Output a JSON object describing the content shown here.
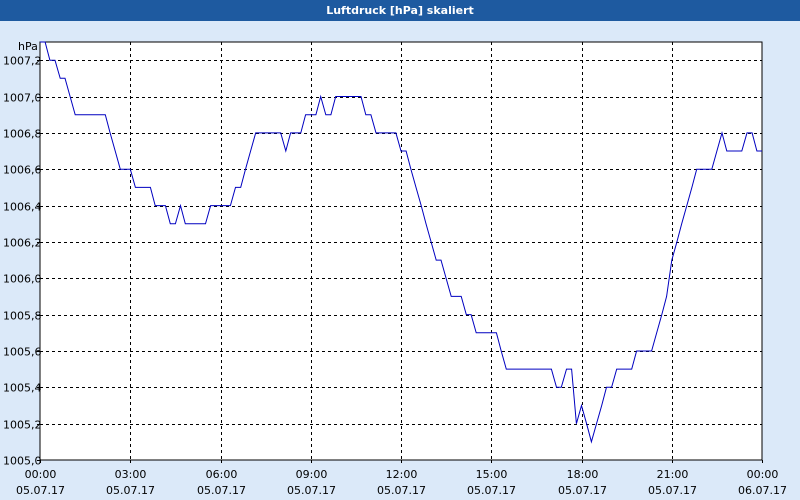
{
  "window": {
    "title": "Luftdruck [hPa] skaliert"
  },
  "colors": {
    "title_bg": "#1e5aa0",
    "background": "#dbe9f9",
    "plot_bg": "#ffffff",
    "grid": "#000000",
    "line": "#0000c0"
  },
  "chart_data": {
    "type": "line",
    "title": "Luftdruck [hPa] skaliert",
    "ylabel": "hPa",
    "xlabel": "",
    "grid": true,
    "x_range_hours": [
      0,
      24
    ],
    "ylim": [
      1005.0,
      1007.3
    ],
    "yticks": [
      "1005,0",
      "1005,2",
      "1005,4",
      "1005,6",
      "1005,8",
      "1006,0",
      "1006,2",
      "1006,4",
      "1006,6",
      "1006,8",
      "1007,0",
      "1007,2"
    ],
    "ytick_values": [
      1005.0,
      1005.2,
      1005.4,
      1005.6,
      1005.8,
      1006.0,
      1006.2,
      1006.4,
      1006.6,
      1006.8,
      1007.0,
      1007.2
    ],
    "xticks": [
      {
        "time": "00:00",
        "date": "05.07.17"
      },
      {
        "time": "03:00",
        "date": "05.07.17"
      },
      {
        "time": "06:00",
        "date": "05.07.17"
      },
      {
        "time": "09:00",
        "date": "05.07.17"
      },
      {
        "time": "12:00",
        "date": "05.07.17"
      },
      {
        "time": "15:00",
        "date": "05.07.17"
      },
      {
        "time": "18:00",
        "date": "05.07.17"
      },
      {
        "time": "21:00",
        "date": "05.07.17"
      },
      {
        "time": "00:00",
        "date": "06.07.17"
      }
    ],
    "xtick_hours": [
      0,
      3,
      6,
      9,
      12,
      15,
      18,
      21,
      24
    ],
    "series": [
      {
        "x": [
          0.0,
          0.17,
          0.33,
          0.5,
          0.67,
          0.83,
          1.0,
          1.17,
          1.33,
          1.5,
          1.67,
          1.83,
          2.0,
          2.17,
          2.33,
          2.5,
          2.67,
          2.83,
          3.0,
          3.17,
          3.33,
          3.5,
          3.67,
          3.83,
          4.0,
          4.17,
          4.33,
          4.5,
          4.67,
          4.83,
          5.0,
          5.17,
          5.33,
          5.5,
          5.67,
          5.83,
          6.0,
          6.17,
          6.33,
          6.5,
          6.67,
          6.83,
          7.0,
          7.17,
          7.33,
          7.5,
          7.67,
          7.83,
          8.0,
          8.17,
          8.33,
          8.5,
          8.67,
          8.83,
          9.0,
          9.17,
          9.33,
          9.5,
          9.67,
          9.83,
          10.0,
          10.17,
          10.33,
          10.5,
          10.67,
          10.83,
          11.0,
          11.17,
          11.33,
          11.5,
          11.67,
          11.83,
          12.0,
          12.17,
          12.33,
          12.5,
          12.67,
          12.83,
          13.0,
          13.17,
          13.33,
          13.5,
          13.67,
          13.83,
          14.0,
          14.17,
          14.33,
          14.5,
          14.67,
          14.83,
          15.0,
          15.17,
          15.33,
          15.5,
          15.67,
          15.83,
          16.0,
          16.17,
          16.33,
          16.5,
          16.67,
          16.83,
          17.0,
          17.17,
          17.33,
          17.5,
          17.67,
          17.83,
          18.0,
          18.17,
          18.33,
          18.5,
          18.67,
          18.83,
          19.0,
          19.17,
          19.33,
          19.5,
          19.67,
          19.83,
          20.0,
          20.17,
          20.33,
          20.5,
          20.67,
          20.83,
          21.0,
          21.17,
          21.33,
          21.5,
          21.67,
          21.83,
          22.0,
          22.17,
          22.33,
          22.5,
          22.67,
          22.83,
          23.0,
          23.17,
          23.33,
          23.5,
          23.67,
          23.83,
          24.0
        ],
        "y": [
          1007.3,
          1007.3,
          1007.2,
          1007.2,
          1007.1,
          1007.1,
          1007.0,
          1006.9,
          1006.9,
          1006.9,
          1006.9,
          1006.9,
          1006.9,
          1006.9,
          1006.8,
          1006.7,
          1006.6,
          1006.6,
          1006.6,
          1006.5,
          1006.5,
          1006.5,
          1006.5,
          1006.4,
          1006.4,
          1006.4,
          1006.3,
          1006.3,
          1006.4,
          1006.3,
          1006.3,
          1006.3,
          1006.3,
          1006.3,
          1006.4,
          1006.4,
          1006.4,
          1006.4,
          1006.4,
          1006.5,
          1006.5,
          1006.6,
          1006.7,
          1006.8,
          1006.8,
          1006.8,
          1006.8,
          1006.8,
          1006.8,
          1006.7,
          1006.8,
          1006.8,
          1006.8,
          1006.9,
          1006.9,
          1006.9,
          1007.0,
          1006.9,
          1006.9,
          1007.0,
          1007.0,
          1007.0,
          1007.0,
          1007.0,
          1007.0,
          1006.9,
          1006.9,
          1006.8,
          1006.8,
          1006.8,
          1006.8,
          1006.8,
          1006.7,
          1006.7,
          1006.6,
          1006.5,
          1006.4,
          1006.3,
          1006.2,
          1006.1,
          1006.1,
          1006.0,
          1005.9,
          1005.9,
          1005.9,
          1005.8,
          1005.8,
          1005.7,
          1005.7,
          1005.7,
          1005.7,
          1005.7,
          1005.6,
          1005.5,
          1005.5,
          1005.5,
          1005.5,
          1005.5,
          1005.5,
          1005.5,
          1005.5,
          1005.5,
          1005.5,
          1005.4,
          1005.4,
          1005.5,
          1005.5,
          1005.2,
          1005.3,
          1005.2,
          1005.1,
          1005.2,
          1005.3,
          1005.4,
          1005.4,
          1005.5,
          1005.5,
          1005.5,
          1005.5,
          1005.6,
          1005.6,
          1005.6,
          1005.6,
          1005.7,
          1005.8,
          1005.9,
          1006.1,
          1006.2,
          1006.3,
          1006.4,
          1006.5,
          1006.6,
          1006.6,
          1006.6,
          1006.6,
          1006.7,
          1006.8,
          1006.7,
          1006.7,
          1006.7,
          1006.7,
          1006.8,
          1006.8,
          1006.7,
          1006.7
        ]
      }
    ]
  }
}
